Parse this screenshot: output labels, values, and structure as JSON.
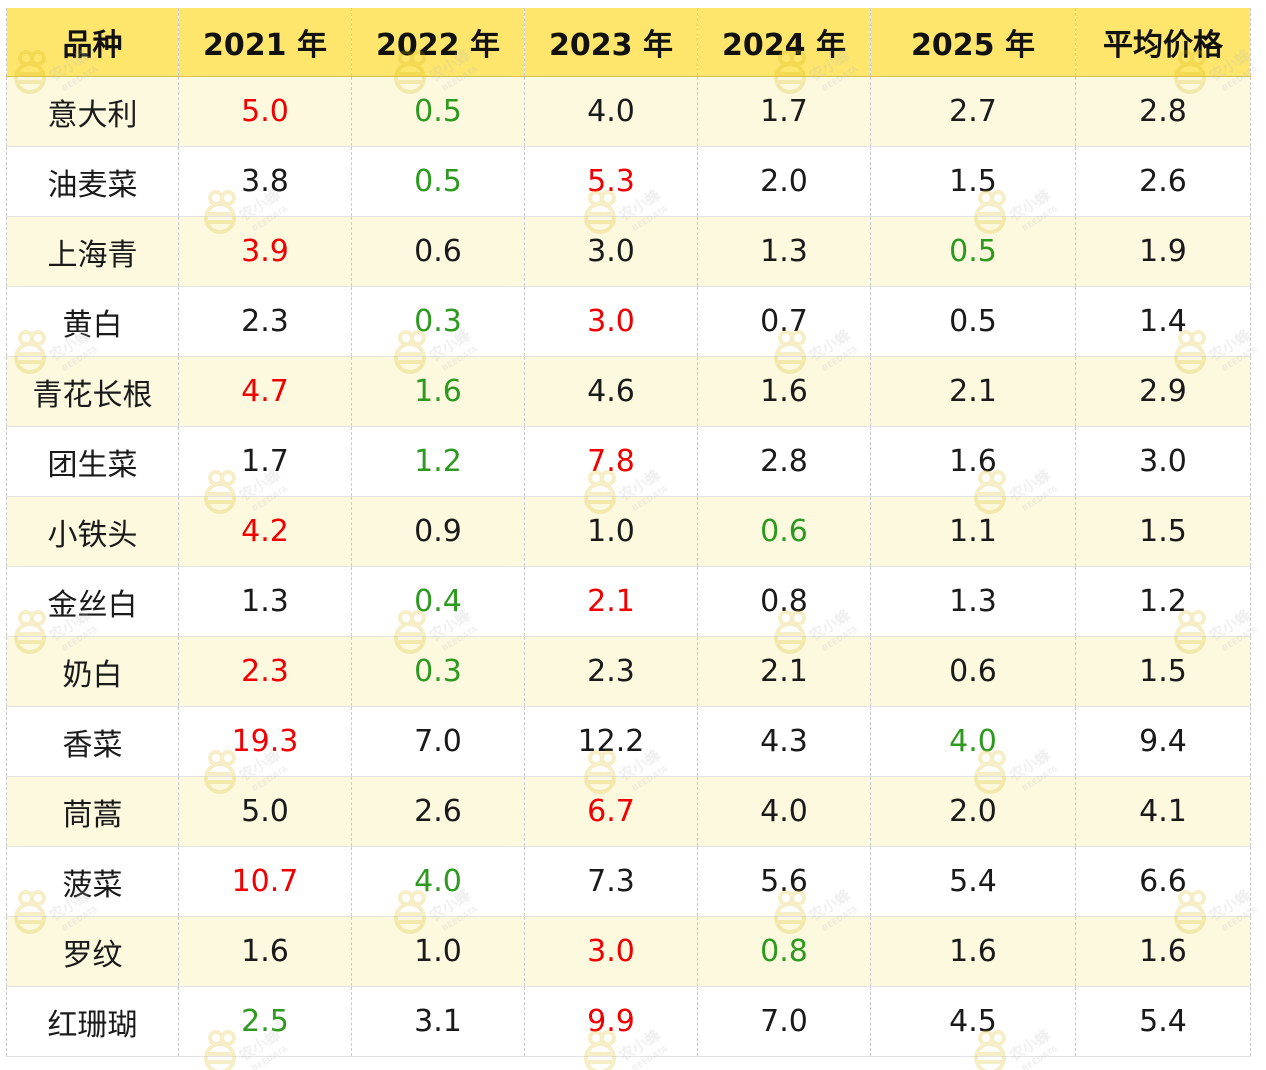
{
  "table": {
    "headers": [
      "品种",
      "2021 年",
      "2022 年",
      "2023 年",
      "2024 年",
      "2025 年",
      "平均价格"
    ],
    "rows": [
      {
        "name": "意大利",
        "values": [
          "5.0",
          "0.5",
          "4.0",
          "1.7",
          "2.7",
          "2.8"
        ],
        "styles": [
          "red",
          "green",
          "normal",
          "normal",
          "normal",
          "normal"
        ]
      },
      {
        "name": "油麦菜",
        "values": [
          "3.8",
          "0.5",
          "5.3",
          "2.0",
          "1.5",
          "2.6"
        ],
        "styles": [
          "normal",
          "green",
          "red",
          "normal",
          "normal",
          "normal"
        ]
      },
      {
        "name": "上海青",
        "values": [
          "3.9",
          "0.6",
          "3.0",
          "1.3",
          "0.5",
          "1.9"
        ],
        "styles": [
          "red",
          "normal",
          "normal",
          "normal",
          "green",
          "normal"
        ]
      },
      {
        "name": "黄白",
        "values": [
          "2.3",
          "0.3",
          "3.0",
          "0.7",
          "0.5",
          "1.4"
        ],
        "styles": [
          "normal",
          "green",
          "red",
          "normal",
          "normal",
          "normal"
        ]
      },
      {
        "name": "青花长根",
        "values": [
          "4.7",
          "1.6",
          "4.6",
          "1.6",
          "2.1",
          "2.9"
        ],
        "styles": [
          "red",
          "green",
          "normal",
          "normal",
          "normal",
          "normal"
        ]
      },
      {
        "name": "团生菜",
        "values": [
          "1.7",
          "1.2",
          "7.8",
          "2.8",
          "1.6",
          "3.0"
        ],
        "styles": [
          "normal",
          "green",
          "red",
          "normal",
          "normal",
          "normal"
        ]
      },
      {
        "name": "小铁头",
        "values": [
          "4.2",
          "0.9",
          "1.0",
          "0.6",
          "1.1",
          "1.5"
        ],
        "styles": [
          "red",
          "normal",
          "normal",
          "green",
          "normal",
          "normal"
        ]
      },
      {
        "name": "金丝白",
        "values": [
          "1.3",
          "0.4",
          "2.1",
          "0.8",
          "1.3",
          "1.2"
        ],
        "styles": [
          "normal",
          "green",
          "red",
          "normal",
          "normal",
          "normal"
        ]
      },
      {
        "name": "奶白",
        "values": [
          "2.3",
          "0.3",
          "2.3",
          "2.1",
          "0.6",
          "1.5"
        ],
        "styles": [
          "red",
          "green",
          "normal",
          "normal",
          "normal",
          "normal"
        ]
      },
      {
        "name": "香菜",
        "values": [
          "19.3",
          "7.0",
          "12.2",
          "4.3",
          "4.0",
          "9.4"
        ],
        "styles": [
          "red",
          "normal",
          "normal",
          "normal",
          "green",
          "normal"
        ]
      },
      {
        "name": "茼蒿",
        "values": [
          "5.0",
          "2.6",
          "6.7",
          "4.0",
          "2.0",
          "4.1"
        ],
        "styles": [
          "normal",
          "normal",
          "red",
          "normal",
          "normal",
          "normal"
        ]
      },
      {
        "name": "菠菜",
        "values": [
          "10.7",
          "4.0",
          "7.3",
          "5.6",
          "5.4",
          "6.6"
        ],
        "styles": [
          "red",
          "green",
          "normal",
          "normal",
          "normal",
          "normal"
        ]
      },
      {
        "name": "罗纹",
        "values": [
          "1.6",
          "1.0",
          "3.0",
          "0.8",
          "1.6",
          "1.6"
        ],
        "styles": [
          "normal",
          "normal",
          "red",
          "green",
          "normal",
          "normal"
        ]
      },
      {
        "name": "红珊瑚",
        "values": [
          "2.5",
          "3.1",
          "9.9",
          "7.0",
          "4.5",
          "5.4"
        ],
        "styles": [
          "green",
          "normal",
          "red",
          "normal",
          "normal",
          "normal"
        ]
      }
    ]
  },
  "colors": {
    "header_bg": "#fde66b",
    "row_stripe": "#fdf9df",
    "high": "#f00000",
    "low": "#2d9a1f",
    "text": "#1a1a1a"
  },
  "watermark": {
    "brand": "农小蜂",
    "sub": "BEEDATA",
    "icon": "bee-logo-icon"
  }
}
